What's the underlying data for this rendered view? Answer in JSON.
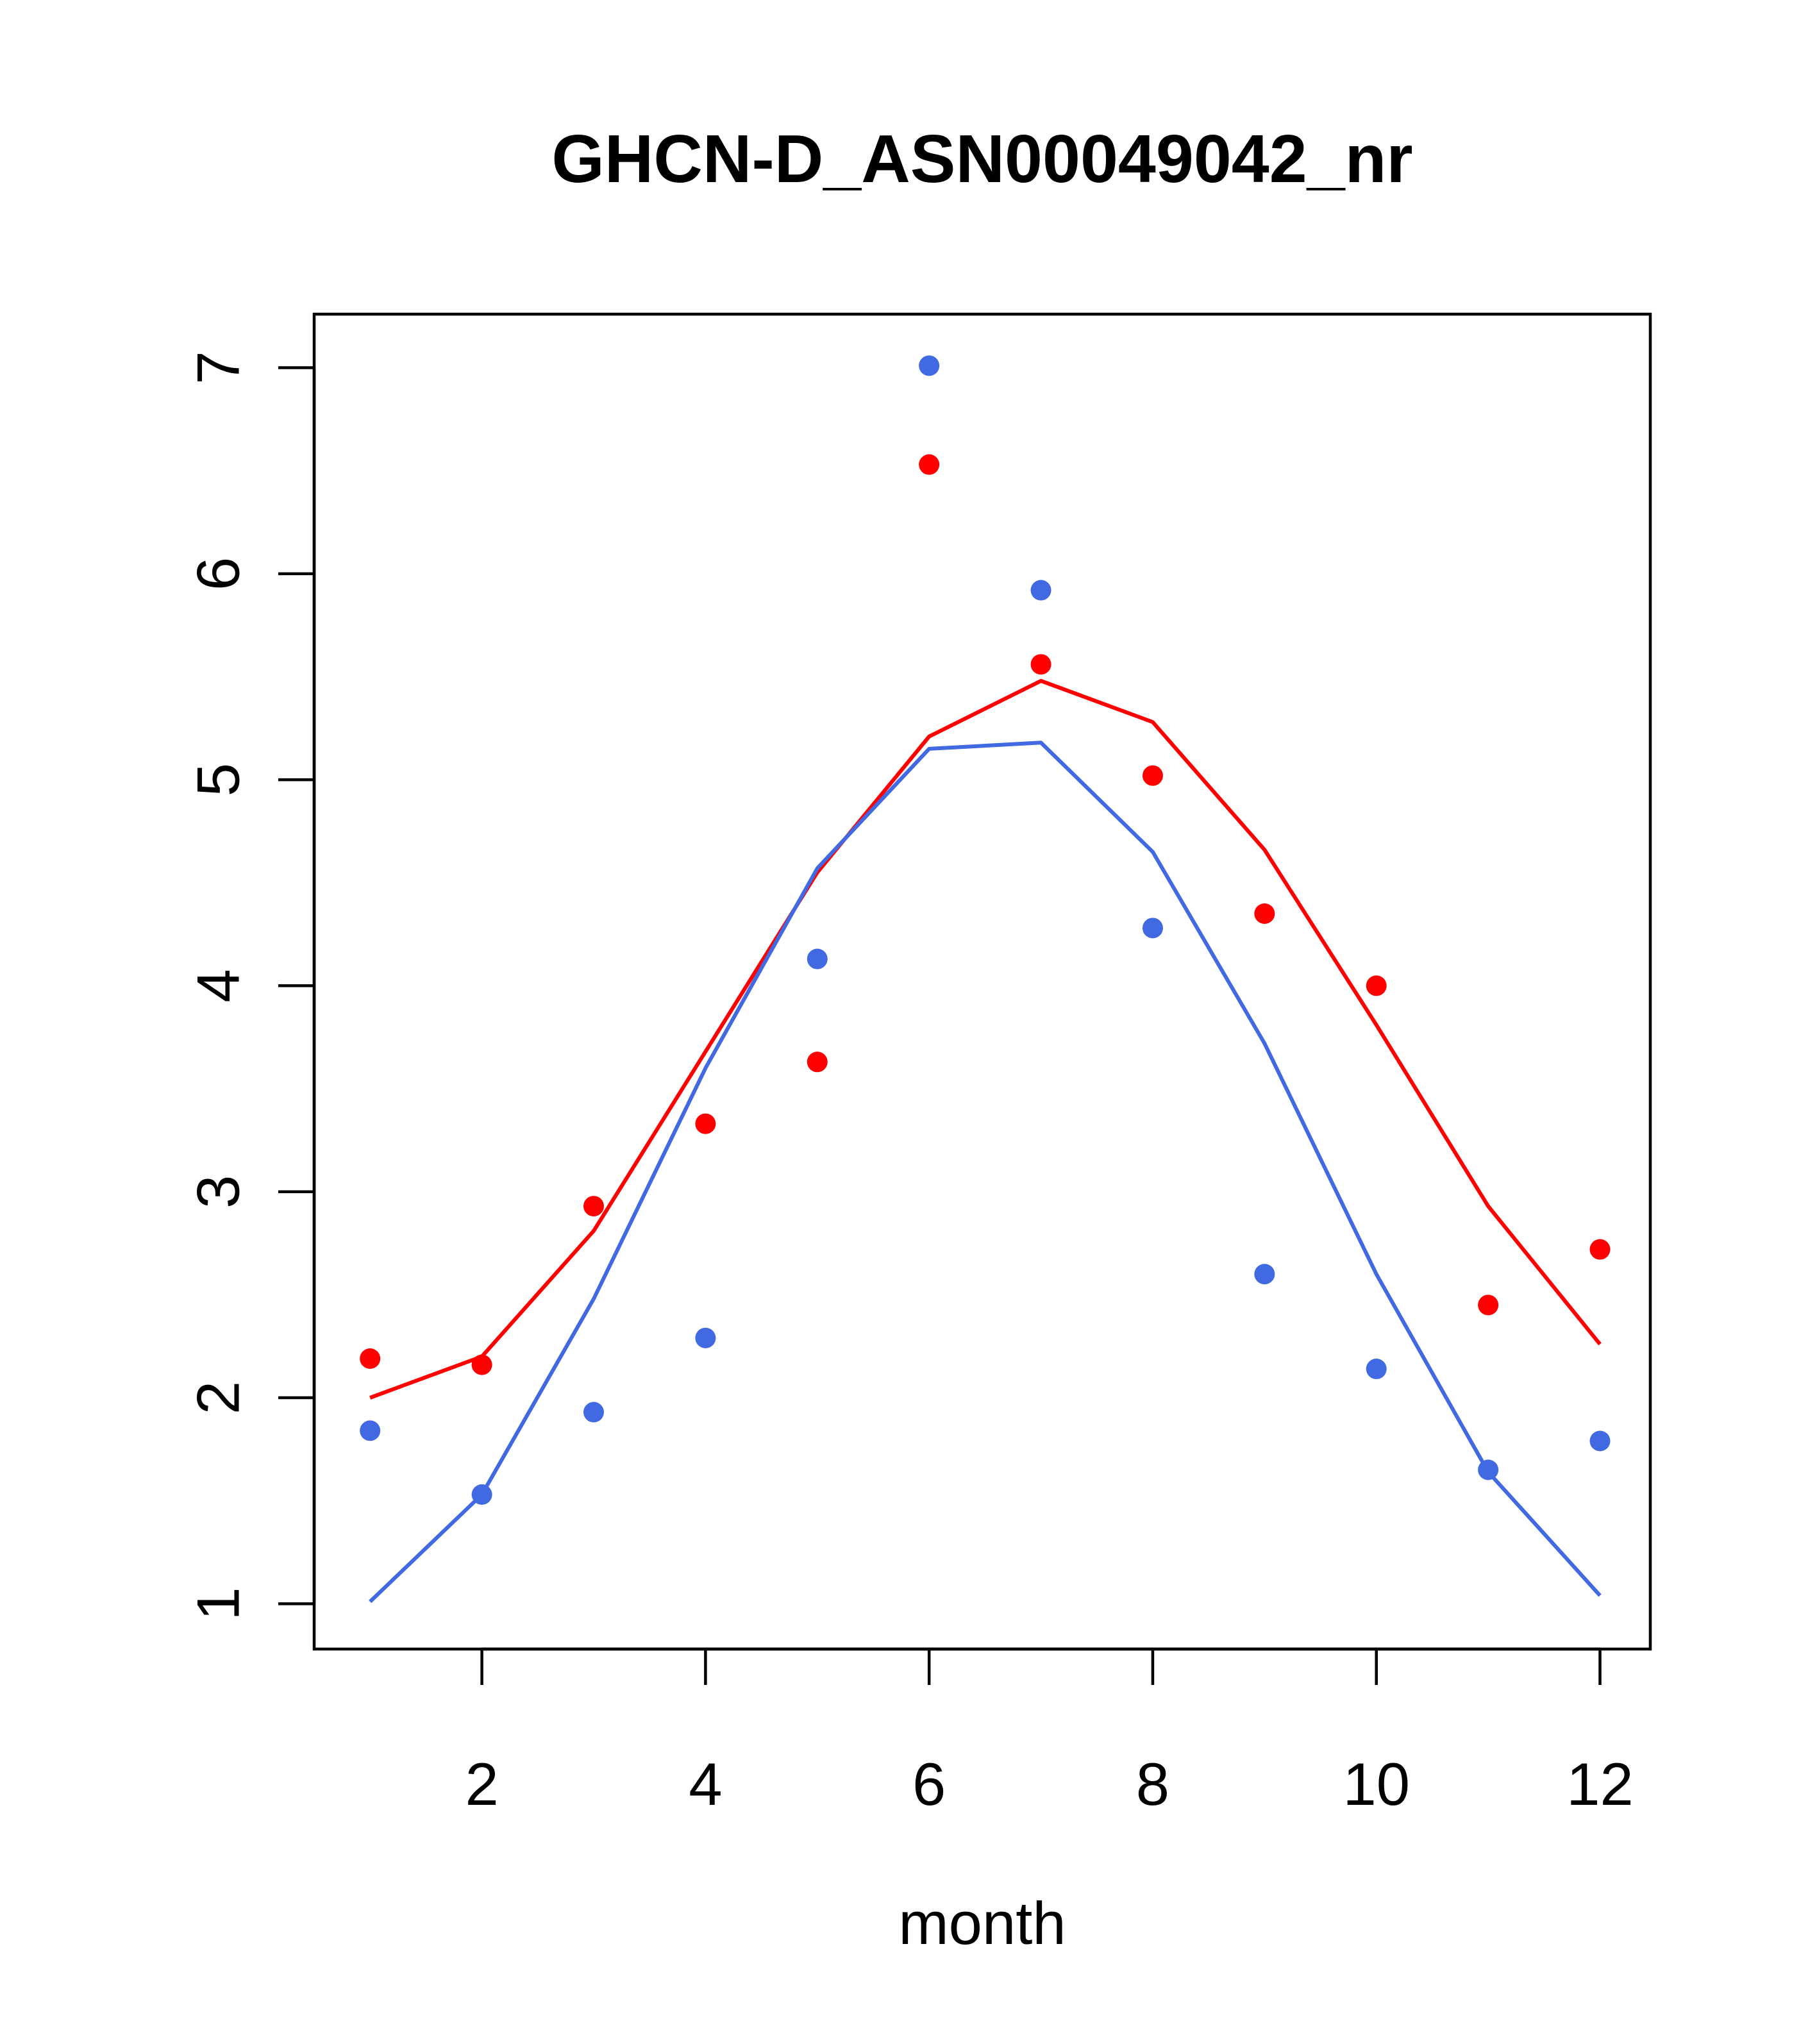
{
  "chart_data": {
    "type": "scatter",
    "title": "GHCN-D_ASN00049042_nr",
    "xlabel": "month",
    "ylabel": "",
    "xlim": [
      0.5,
      12.45
    ],
    "ylim": [
      0.78,
      7.26
    ],
    "xticks": [
      2,
      4,
      6,
      8,
      10,
      12
    ],
    "yticks": [
      1,
      2,
      3,
      4,
      5,
      6,
      7
    ],
    "grid": false,
    "legend": "none",
    "points": [
      {
        "color": "#ff0000",
        "x": [
          1,
          2,
          3,
          4,
          5,
          6,
          7,
          8,
          9,
          10,
          11,
          12
        ],
        "y": [
          2.19,
          2.16,
          2.93,
          3.33,
          3.63,
          6.53,
          5.56,
          5.02,
          4.35,
          4.0,
          2.45,
          2.72
        ]
      },
      {
        "color": "#4169e1",
        "x": [
          1,
          2,
          3,
          4,
          5,
          6,
          7,
          8,
          9,
          10,
          11,
          12
        ],
        "y": [
          1.84,
          1.53,
          1.93,
          2.29,
          4.13,
          7.01,
          5.92,
          4.28,
          2.6,
          2.14,
          1.65,
          1.79
        ]
      }
    ],
    "lines": [
      {
        "color": "#ff0000",
        "x": [
          1,
          2,
          3,
          4,
          5,
          6,
          7,
          8,
          9,
          10,
          11,
          12
        ],
        "y": [
          2.0,
          2.2,
          2.81,
          3.68,
          4.55,
          5.21,
          5.48,
          5.28,
          4.66,
          3.81,
          2.93,
          2.26
        ]
      },
      {
        "color": "#4169e1",
        "x": [
          1,
          2,
          3,
          4,
          5,
          6,
          7,
          8,
          9,
          10,
          11,
          12
        ],
        "y": [
          1.01,
          1.53,
          2.48,
          3.6,
          4.57,
          5.15,
          5.18,
          4.65,
          3.72,
          2.6,
          1.64,
          1.04
        ]
      }
    ]
  }
}
